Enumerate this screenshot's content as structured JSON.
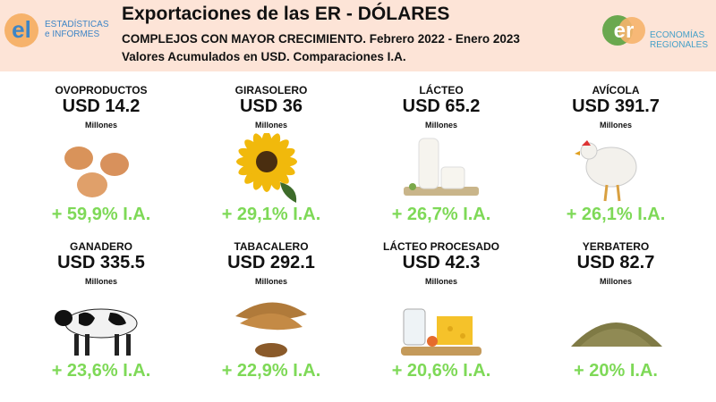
{
  "header": {
    "title": "Exportaciones de las ER - DÓLARES",
    "subtitle": "COMPLEJOS CON MAYOR CRECIMIENTO. Febrero 2022 - Enero 2023",
    "note": "Valores Acumulados en USD. Comparaciones I.A.",
    "logo_left": {
      "mark": "el",
      "lines": [
        "ESTADÍSTICAS",
        "e INFORMES"
      ]
    },
    "logo_right": {
      "mark": "er",
      "lines": [
        "ECONOMÍAS",
        "REGIONALES"
      ]
    }
  },
  "cards": [
    {
      "name": "OVOPRODUCTOS",
      "value": "USD 14.2",
      "unit": "Millones",
      "growth": "+ 59,9% I.A."
    },
    {
      "name": "GIRASOLERO",
      "value": "USD 36",
      "unit": "Millones",
      "growth": "+ 29,1% I.A."
    },
    {
      "name": "LÁCTEO",
      "value": "USD 65.2",
      "unit": "Millones",
      "growth": "+ 26,7% I.A."
    },
    {
      "name": "AVÍCOLA",
      "value": "USD 391.7",
      "unit": "Millones",
      "growth": "+ 26,1% I.A."
    },
    {
      "name": "GANADERO",
      "value": "USD 335.5",
      "unit": "Millones",
      "growth": "+ 23,6% I.A."
    },
    {
      "name": "TABACALERO",
      "value": "USD 292.1",
      "unit": "Millones",
      "growth": "+ 22,9% I.A."
    },
    {
      "name": "LÁCTEO PROCESADO",
      "value": "USD 42.3",
      "unit": "Millones",
      "growth": "+ 20,6% I.A."
    },
    {
      "name": "YERBATERO",
      "value": "USD 82.7",
      "unit": "Millones",
      "growth": "+ 20% I.A."
    }
  ]
}
